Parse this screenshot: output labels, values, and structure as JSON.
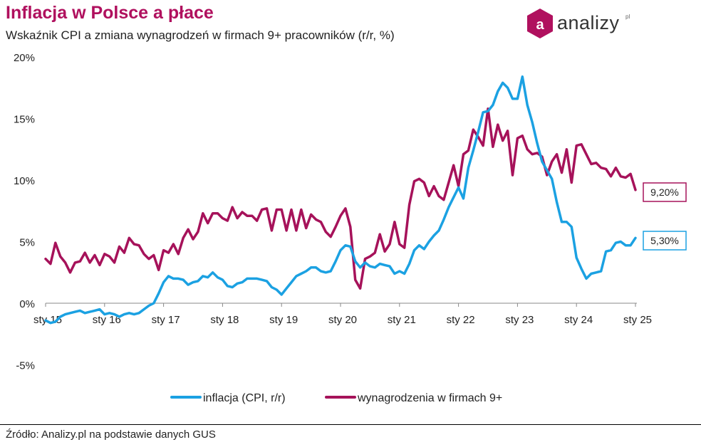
{
  "header": {
    "title": "Inflacja w Polsce a płace",
    "subtitle": "Wskaźnik CPI a zmiana wynagrodzeń w firmach 9+ pracowników (r/r, %)"
  },
  "logo": {
    "text": "analizy",
    "superscript": "pl",
    "icon_letter": "a",
    "icon": "analizy-logo-icon",
    "color": "#b0105e"
  },
  "footer": {
    "source": "Źródło: Analizy.pl na podstawie danych GUS"
  },
  "chart_data": {
    "type": "line",
    "title": "Inflacja w Polsce a płace",
    "subtitle": "Wskaźnik CPI a zmiana wynagrodzeń w firmach 9+ pracowników (r/r, %)",
    "x_start": "2015-01",
    "x_ticks": [
      "sty 15",
      "sty 16",
      "sty 17",
      "sty 18",
      "sty 19",
      "sty 20",
      "sty 21",
      "sty 22",
      "sty 23",
      "sty 24",
      "sty 25"
    ],
    "y_ticks": [
      "20%",
      "15%",
      "10%",
      "5%",
      "0%",
      "-5%"
    ],
    "ylim": [
      -5,
      20
    ],
    "grid": false,
    "legend_position": "bottom",
    "series": [
      {
        "name": "inflacja (CPI, r/r)",
        "color": "#1ba1e2",
        "end_label": "5,30%",
        "values": [
          -1.4,
          -1.6,
          -1.5,
          -1.1,
          -0.9,
          -0.8,
          -0.7,
          -0.6,
          -0.8,
          -0.7,
          -0.6,
          -0.5,
          -0.9,
          -0.8,
          -0.9,
          -1.1,
          -0.9,
          -0.8,
          -0.9,
          -0.8,
          -0.5,
          -0.2,
          0.0,
          0.8,
          1.7,
          2.2,
          2.0,
          2.0,
          1.9,
          1.5,
          1.7,
          1.8,
          2.2,
          2.1,
          2.5,
          2.1,
          1.9,
          1.4,
          1.3,
          1.6,
          1.7,
          2.0,
          2.0,
          2.0,
          1.9,
          1.8,
          1.3,
          1.1,
          0.7,
          1.2,
          1.7,
          2.2,
          2.4,
          2.6,
          2.9,
          2.9,
          2.6,
          2.5,
          2.6,
          3.4,
          4.3,
          4.7,
          4.6,
          3.4,
          2.9,
          3.3,
          3.0,
          2.9,
          3.2,
          3.1,
          3.0,
          2.4,
          2.6,
          2.4,
          3.2,
          4.3,
          4.7,
          4.4,
          5.0,
          5.5,
          5.9,
          6.8,
          7.8,
          8.6,
          9.4,
          8.5,
          11.0,
          12.4,
          13.9,
          15.5,
          15.6,
          16.1,
          17.2,
          17.9,
          17.5,
          16.6,
          16.6,
          18.4,
          16.1,
          14.7,
          13.0,
          11.5,
          10.8,
          10.1,
          8.2,
          6.6,
          6.6,
          6.2,
          3.7,
          2.8,
          2.0,
          2.4,
          2.5,
          2.6,
          4.2,
          4.3,
          4.9,
          5.0,
          4.7,
          4.7,
          5.3
        ]
      },
      {
        "name": "wynagrodzenia w firmach 9+",
        "color": "#a6125a",
        "end_label": "9,20%",
        "values": [
          3.6,
          3.2,
          4.9,
          3.8,
          3.3,
          2.5,
          3.3,
          3.4,
          4.1,
          3.3,
          3.9,
          3.1,
          4.0,
          3.8,
          3.3,
          4.6,
          4.1,
          5.3,
          4.8,
          4.7,
          4.0,
          3.6,
          3.9,
          2.7,
          4.3,
          4.1,
          4.8,
          4.0,
          5.3,
          6.0,
          5.2,
          5.8,
          7.3,
          6.5,
          7.3,
          7.3,
          6.9,
          6.7,
          7.8,
          6.9,
          7.4,
          7.1,
          7.1,
          6.7,
          7.6,
          7.7,
          5.9,
          7.6,
          7.6,
          5.9,
          7.6,
          5.9,
          7.6,
          6.1,
          7.2,
          6.8,
          6.6,
          5.8,
          5.4,
          6.2,
          7.1,
          7.7,
          6.2,
          1.9,
          1.2,
          3.6,
          3.8,
          4.1,
          5.6,
          4.2,
          4.8,
          6.6,
          4.8,
          4.5,
          8.0,
          9.9,
          10.1,
          9.8,
          8.7,
          9.5,
          8.7,
          8.4,
          9.8,
          11.2,
          9.5,
          12.1,
          12.4,
          14.1,
          13.5,
          12.8,
          15.8,
          12.7,
          14.5,
          13.2,
          14.0,
          10.4,
          13.4,
          13.6,
          12.5,
          12.1,
          12.2,
          11.9,
          10.4,
          11.5,
          12.1,
          10.6,
          12.5,
          9.8,
          12.8,
          12.9,
          12.1,
          11.3,
          11.4,
          11.0,
          10.9,
          10.3,
          11.0,
          10.3,
          10.2,
          10.5,
          9.2
        ]
      }
    ]
  }
}
